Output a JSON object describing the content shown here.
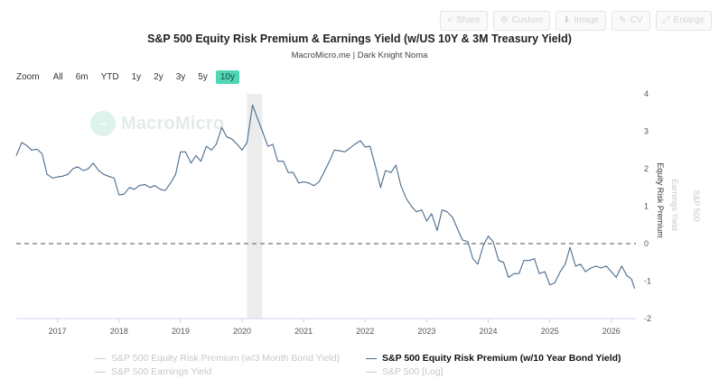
{
  "toolbar": {
    "share": "Share",
    "custom": "Custom",
    "image": "Image",
    "cv": "CV",
    "enlarge": "Enlarge"
  },
  "header": {
    "title": "S&P 500 Equity Risk Premium & Earnings Yield (w/US 10Y & 3M Treasury Yield)",
    "subtitle": "MacroMicro.me | Dark Knight Noma"
  },
  "zoom": {
    "label": "Zoom",
    "options": [
      "All",
      "6m",
      "YTD",
      "1y",
      "2y",
      "3y",
      "5y",
      "10y"
    ],
    "active": "10y"
  },
  "watermark": "MacroMicro",
  "chart_data": {
    "type": "line",
    "title": "S&P 500 Equity Risk Premium & Earnings Yield (w/US 10Y & 3M Treasury Yield)",
    "subtitle": "MacroMicro.me | Dark Knight Noma",
    "x_ticks": [
      "2017",
      "2018",
      "2019",
      "2020",
      "2021",
      "2022",
      "2023",
      "2024",
      "2025",
      "2026"
    ],
    "xlim": [
      2016.33,
      2026.4
    ],
    "y_right_label": "Equity Risk Premium",
    "y_right2_label": "Earnings Yield",
    "y_right3_label": "S&P 500",
    "ylim": [
      -2,
      4
    ],
    "y_ticks": [
      4,
      3,
      2,
      1,
      0,
      -1,
      -2
    ],
    "reference_line": 0,
    "shaded_range": [
      2020.08,
      2020.33
    ],
    "series": [
      {
        "name": "S&P 500 Equity Risk Premium (w/10 Year Bond Yield)",
        "color": "#4a6b8a",
        "visible": true,
        "points": [
          [
            2016.33,
            2.35
          ],
          [
            2016.42,
            2.7
          ],
          [
            2016.5,
            2.62
          ],
          [
            2016.58,
            2.5
          ],
          [
            2016.67,
            2.52
          ],
          [
            2016.75,
            2.4
          ],
          [
            2016.83,
            1.85
          ],
          [
            2016.92,
            1.75
          ],
          [
            2017.0,
            1.78
          ],
          [
            2017.08,
            1.8
          ],
          [
            2017.17,
            1.85
          ],
          [
            2017.25,
            2.0
          ],
          [
            2017.33,
            2.05
          ],
          [
            2017.42,
            1.95
          ],
          [
            2017.5,
            2.0
          ],
          [
            2017.58,
            2.15
          ],
          [
            2017.67,
            1.95
          ],
          [
            2017.75,
            1.85
          ],
          [
            2017.83,
            1.8
          ],
          [
            2017.92,
            1.75
          ],
          [
            2018.0,
            1.3
          ],
          [
            2018.08,
            1.32
          ],
          [
            2018.17,
            1.5
          ],
          [
            2018.25,
            1.45
          ],
          [
            2018.33,
            1.55
          ],
          [
            2018.42,
            1.58
          ],
          [
            2018.5,
            1.5
          ],
          [
            2018.58,
            1.55
          ],
          [
            2018.67,
            1.45
          ],
          [
            2018.75,
            1.42
          ],
          [
            2018.83,
            1.6
          ],
          [
            2018.92,
            1.85
          ],
          [
            2019.0,
            2.45
          ],
          [
            2019.08,
            2.45
          ],
          [
            2019.17,
            2.15
          ],
          [
            2019.25,
            2.35
          ],
          [
            2019.33,
            2.2
          ],
          [
            2019.42,
            2.6
          ],
          [
            2019.5,
            2.5
          ],
          [
            2019.58,
            2.65
          ],
          [
            2019.67,
            3.1
          ],
          [
            2019.75,
            2.85
          ],
          [
            2019.83,
            2.8
          ],
          [
            2019.92,
            2.65
          ],
          [
            2020.0,
            2.5
          ],
          [
            2020.08,
            2.7
          ],
          [
            2020.17,
            3.7
          ],
          [
            2020.25,
            3.35
          ],
          [
            2020.33,
            3.0
          ],
          [
            2020.42,
            2.6
          ],
          [
            2020.5,
            2.65
          ],
          [
            2020.58,
            2.2
          ],
          [
            2020.67,
            2.2
          ],
          [
            2020.75,
            1.9
          ],
          [
            2020.83,
            1.9
          ],
          [
            2020.92,
            1.62
          ],
          [
            2021.0,
            1.65
          ],
          [
            2021.08,
            1.62
          ],
          [
            2021.17,
            1.55
          ],
          [
            2021.25,
            1.65
          ],
          [
            2021.33,
            1.9
          ],
          [
            2021.42,
            2.2
          ],
          [
            2021.5,
            2.5
          ],
          [
            2021.58,
            2.48
          ],
          [
            2021.67,
            2.45
          ],
          [
            2021.75,
            2.55
          ],
          [
            2021.83,
            2.65
          ],
          [
            2021.92,
            2.75
          ],
          [
            2022.0,
            2.58
          ],
          [
            2022.08,
            2.6
          ],
          [
            2022.17,
            2.05
          ],
          [
            2022.25,
            1.5
          ],
          [
            2022.33,
            1.95
          ],
          [
            2022.42,
            1.9
          ],
          [
            2022.5,
            2.1
          ],
          [
            2022.58,
            1.55
          ],
          [
            2022.67,
            1.2
          ],
          [
            2022.75,
            1.0
          ],
          [
            2022.83,
            0.85
          ],
          [
            2022.92,
            0.9
          ],
          [
            2023.0,
            0.6
          ],
          [
            2023.08,
            0.8
          ],
          [
            2023.17,
            0.35
          ],
          [
            2023.25,
            0.9
          ],
          [
            2023.33,
            0.85
          ],
          [
            2023.42,
            0.7
          ],
          [
            2023.5,
            0.4
          ],
          [
            2023.58,
            0.1
          ],
          [
            2023.67,
            0.05
          ],
          [
            2023.75,
            -0.4
          ],
          [
            2023.83,
            -0.55
          ],
          [
            2023.92,
            -0.05
          ],
          [
            2024.0,
            0.2
          ],
          [
            2024.08,
            0.05
          ],
          [
            2024.17,
            -0.45
          ],
          [
            2024.25,
            -0.5
          ],
          [
            2024.33,
            -0.9
          ],
          [
            2024.42,
            -0.8
          ],
          [
            2024.5,
            -0.8
          ],
          [
            2024.58,
            -0.45
          ],
          [
            2024.67,
            -0.45
          ],
          [
            2024.75,
            -0.4
          ],
          [
            2024.83,
            -0.8
          ],
          [
            2024.92,
            -0.75
          ],
          [
            2025.0,
            -1.1
          ],
          [
            2025.08,
            -1.05
          ],
          [
            2025.17,
            -0.75
          ],
          [
            2025.25,
            -0.55
          ],
          [
            2025.33,
            -0.1
          ],
          [
            2025.42,
            -0.6
          ],
          [
            2025.5,
            -0.55
          ],
          [
            2025.58,
            -0.75
          ],
          [
            2025.67,
            -0.65
          ],
          [
            2025.75,
            -0.6
          ],
          [
            2025.83,
            -0.65
          ],
          [
            2025.92,
            -0.6
          ],
          [
            2026.0,
            -0.75
          ],
          [
            2026.08,
            -0.9
          ],
          [
            2026.17,
            -0.6
          ],
          [
            2026.25,
            -0.85
          ],
          [
            2026.33,
            -0.95
          ],
          [
            2026.38,
            -1.2
          ]
        ]
      }
    ],
    "legend": [
      {
        "label": "S&P 500 Equity Risk Premium (w/3 Month Bond Yield)",
        "visible": false
      },
      {
        "label": "S&P 500 Equity Risk Premium (w/10 Year Bond Yield)",
        "visible": true
      },
      {
        "label": "S&P 500 Earnings Yield",
        "visible": false
      },
      {
        "label": "S&P 500 [Log]",
        "visible": false
      }
    ]
  }
}
